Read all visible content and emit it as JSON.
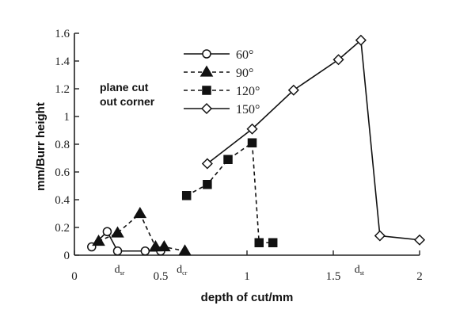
{
  "chart_data": {
    "type": "line",
    "xlabel": "depth of cut/mm",
    "ylabel": "mm/Burr height",
    "annotation": [
      "plane cut",
      "out corner"
    ],
    "xlim": [
      0,
      2
    ],
    "ylim": [
      0,
      1.6
    ],
    "xticks": [
      {
        "value": 0,
        "label": "0"
      },
      {
        "value": 0.5,
        "label": "0.5"
      },
      {
        "value": 1,
        "label": "1"
      },
      {
        "value": 1.5,
        "label": "1.5"
      },
      {
        "value": 2,
        "label": "2"
      }
    ],
    "yticks": [
      {
        "value": 0,
        "label": "0"
      },
      {
        "value": 0.2,
        "label": "0.2"
      },
      {
        "value": 0.4,
        "label": "0.4"
      },
      {
        "value": 0.6,
        "label": "0.6"
      },
      {
        "value": 0.8,
        "label": "0.8"
      },
      {
        "value": 1.0,
        "label": "1"
      },
      {
        "value": 1.2,
        "label": "1.2"
      },
      {
        "value": 1.4,
        "label": "1.4"
      },
      {
        "value": 1.6,
        "label": "1.6"
      }
    ],
    "critical_depths": [
      {
        "base": "d",
        "sub": "sr",
        "x": 0.26
      },
      {
        "base": "d",
        "sub": "cr",
        "x": 0.62
      },
      {
        "base": "d",
        "sub": "st",
        "x": 1.65
      }
    ],
    "legend_placement": "top-center",
    "series": [
      {
        "name": "60°",
        "marker": "circle-open",
        "dash": "solid",
        "x": [
          0.1,
          0.19,
          0.25,
          0.41,
          0.5
        ],
        "y": [
          0.06,
          0.17,
          0.03,
          0.03,
          0.03
        ]
      },
      {
        "name": "90°",
        "marker": "triangle-filled",
        "dash": "dashed",
        "x": [
          0.14,
          0.25,
          0.38,
          0.47,
          0.52,
          0.64
        ],
        "y": [
          0.1,
          0.16,
          0.3,
          0.06,
          0.06,
          0.03
        ]
      },
      {
        "name": "120°",
        "marker": "square-filled",
        "dash": "dashed",
        "x": [
          0.65,
          0.77,
          0.89,
          1.03,
          1.07,
          1.15
        ],
        "y": [
          0.43,
          0.51,
          0.69,
          0.81,
          0.09,
          0.09
        ]
      },
      {
        "name": "150°",
        "marker": "diamond-open",
        "dash": "solid",
        "x": [
          0.77,
          1.03,
          1.27,
          1.53,
          1.66,
          1.77,
          2.0
        ],
        "y": [
          0.66,
          0.91,
          1.19,
          1.41,
          1.55,
          0.14,
          0.11
        ]
      }
    ]
  }
}
